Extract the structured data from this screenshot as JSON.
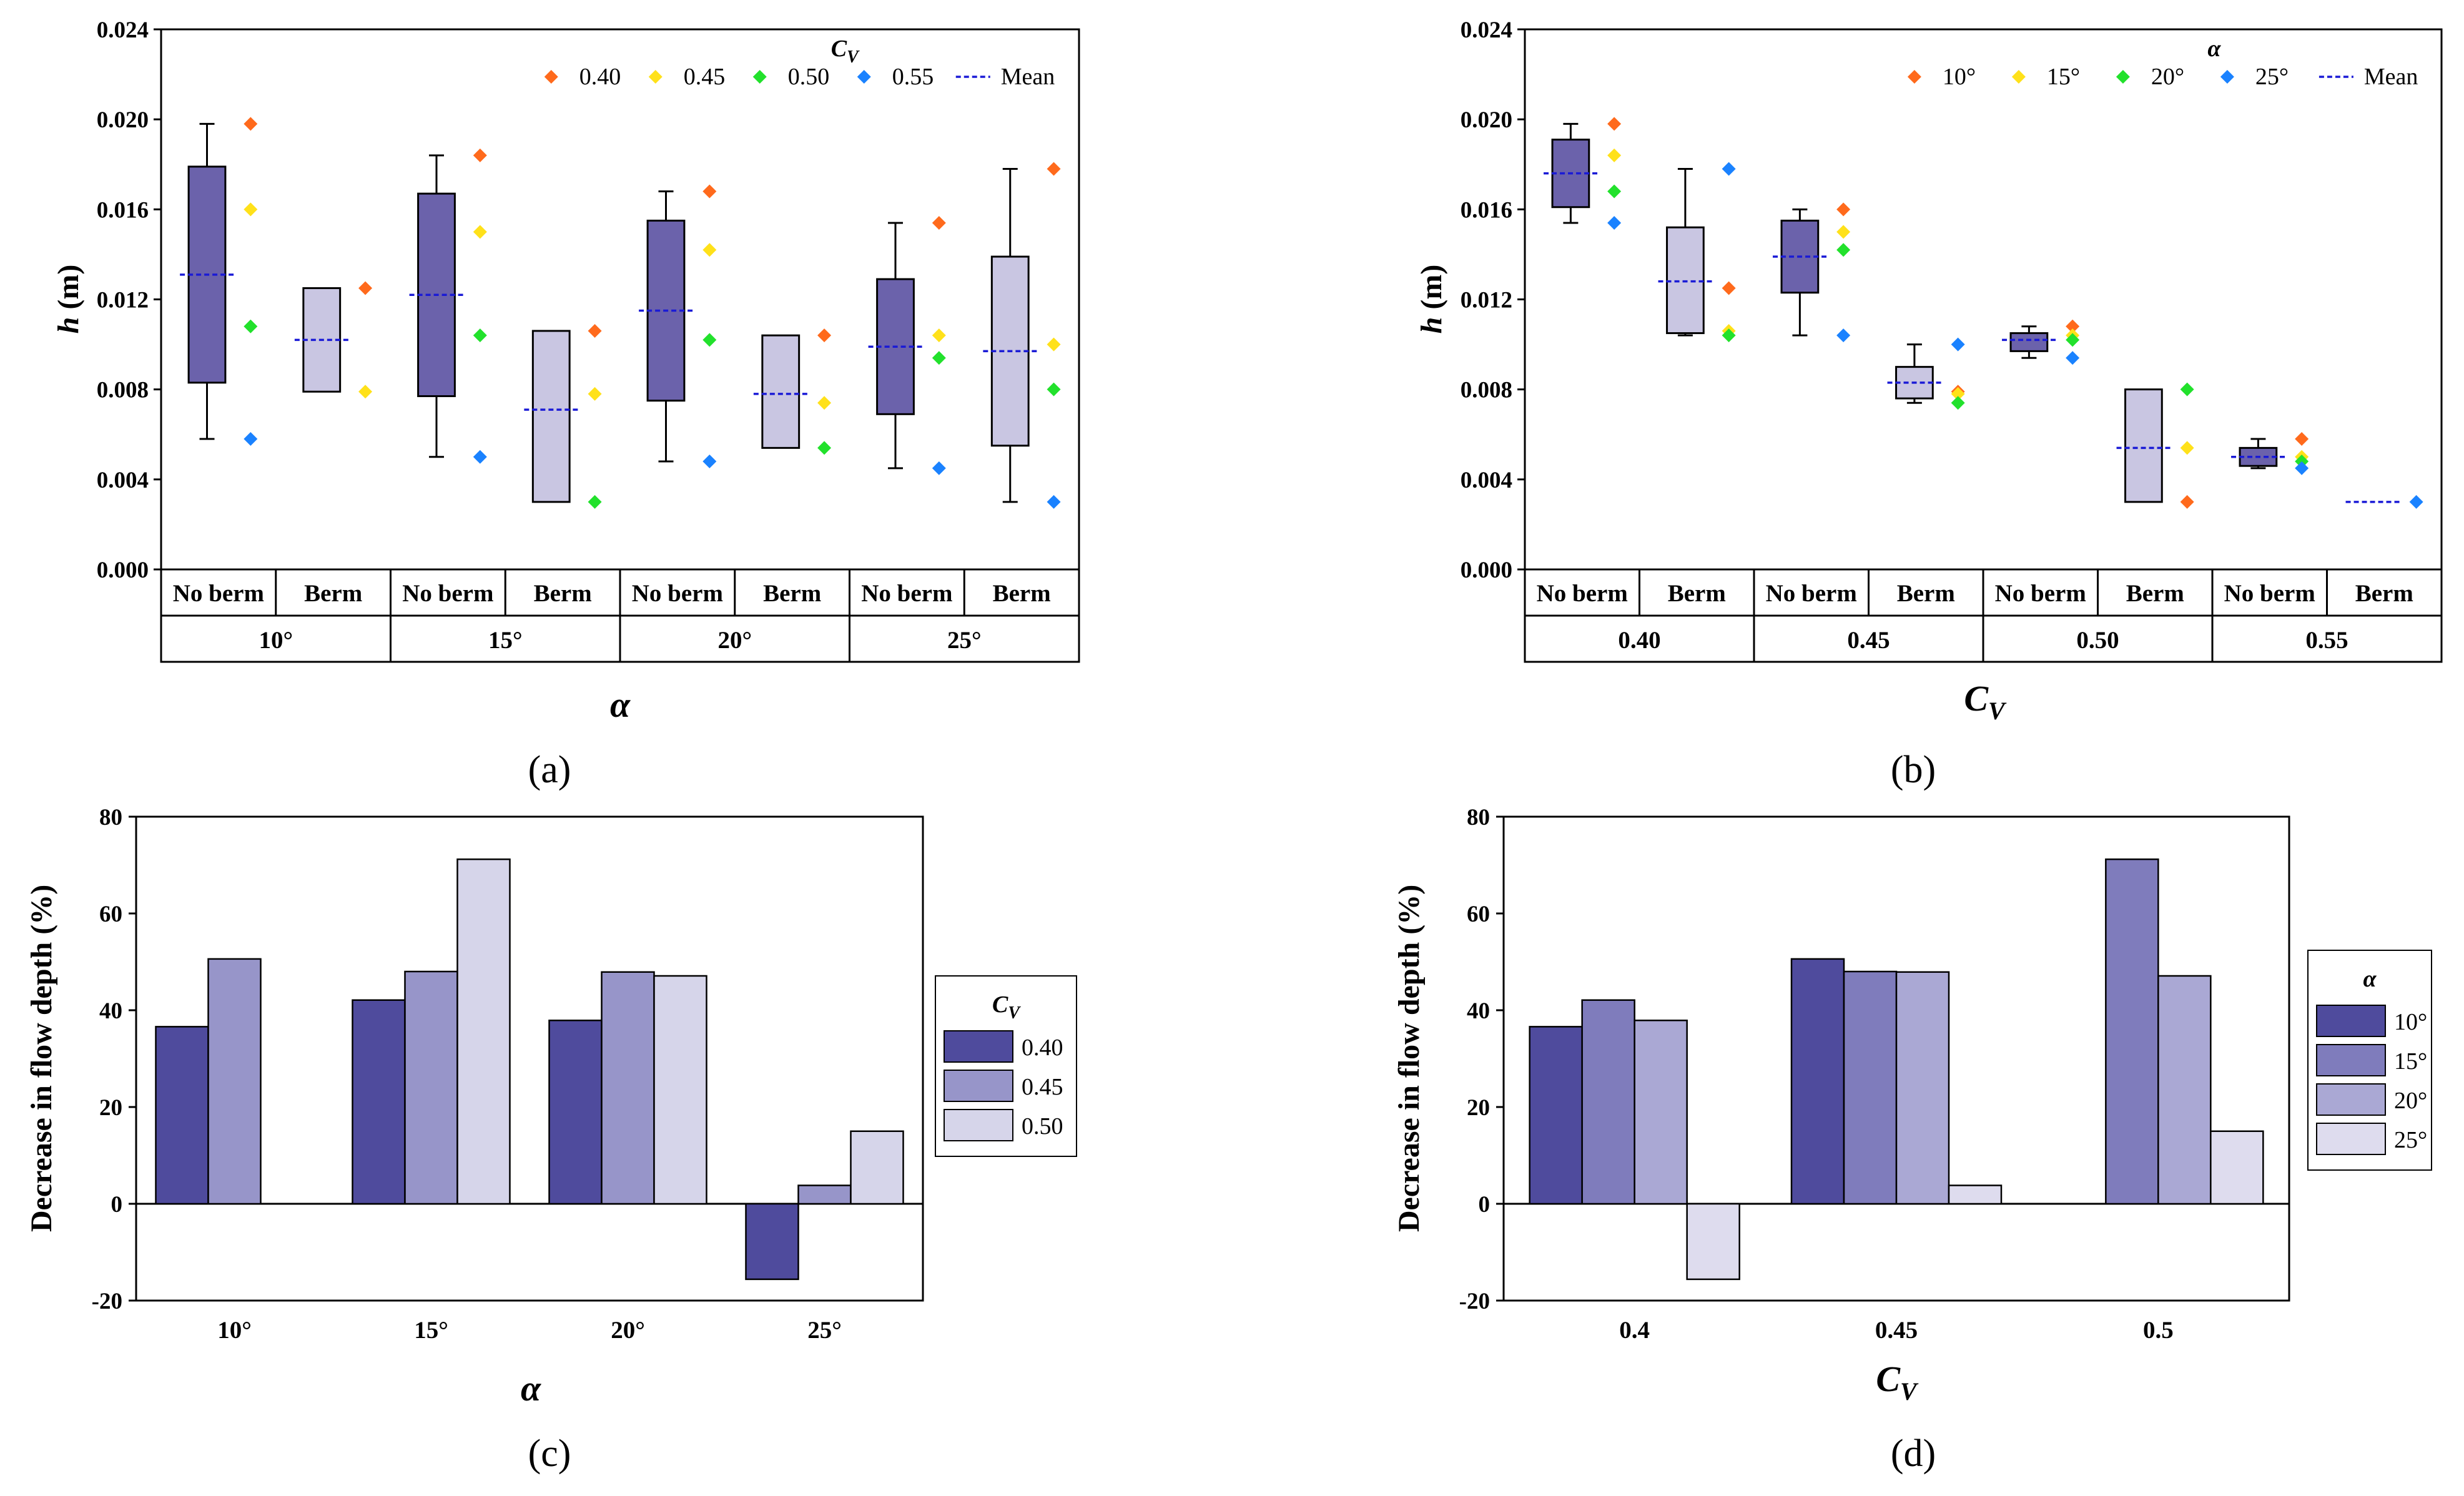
{
  "colors": {
    "box_nb": "#6b62ab",
    "box_b": "#c9c6e2",
    "mean": "#1a1ad6",
    "s040": "#ff6a1c",
    "s045": "#ffe11a",
    "s050": "#22e12c",
    "s055": "#1a82ff",
    "bar_c": [
      "#4f4b9d",
      "#9795c9",
      "#d6d5ea"
    ],
    "bar_d": [
      "#4f4b9d",
      "#7f7cbc",
      "#aaa8d4",
      "#dedcee"
    ]
  },
  "chart_data": [
    {
      "id": "a",
      "type": "box",
      "caption": "(a)",
      "ylabel": "h (m)",
      "ylabel_var": "h",
      "ylabel_unit": " (m)",
      "xlabel": "α",
      "ylim": [
        0,
        0.024
      ],
      "yticks": [
        "0.000",
        "0.004",
        "0.008",
        "0.012",
        "0.016",
        "0.020",
        "0.024"
      ],
      "subcategories": [
        "No berm",
        "Berm"
      ],
      "groups": [
        "10°",
        "15°",
        "20°",
        "25°"
      ],
      "legend_title": "C_V",
      "legend_title_main": "C",
      "legend_title_sub": "V",
      "legend": [
        "0.40",
        "0.45",
        "0.50",
        "0.55",
        "Mean"
      ],
      "boxes": [
        {
          "q1": 0.0083,
          "q3": 0.0179,
          "min": 0.0058,
          "max": 0.0198,
          "mean": 0.0131,
          "points": [
            0.0198,
            0.016,
            0.0108,
            0.0058
          ]
        },
        {
          "q1": 0.0079,
          "q3": 0.0125,
          "mean": 0.0102,
          "points": [
            0.0125,
            0.0079
          ]
        },
        {
          "q1": 0.0077,
          "q3": 0.0167,
          "min": 0.005,
          "max": 0.0184,
          "mean": 0.0122,
          "points": [
            0.0184,
            0.015,
            0.0104,
            0.005
          ]
        },
        {
          "q1": 0.003,
          "q3": 0.0106,
          "mean": 0.0071,
          "points": [
            0.0106,
            0.0078,
            0.003
          ]
        },
        {
          "q1": 0.0075,
          "q3": 0.0155,
          "min": 0.0048,
          "max": 0.0168,
          "mean": 0.0115,
          "points": [
            0.0168,
            0.0142,
            0.0102,
            0.0048
          ]
        },
        {
          "q1": 0.0054,
          "q3": 0.0104,
          "mean": 0.0078,
          "points": [
            0.0104,
            0.0074,
            0.0054
          ]
        },
        {
          "q1": 0.0069,
          "q3": 0.0129,
          "min": 0.0045,
          "max": 0.0154,
          "mean": 0.0099,
          "points": [
            0.0154,
            0.0104,
            0.0094,
            0.0045
          ]
        },
        {
          "q1": 0.0055,
          "q3": 0.0139,
          "min": 0.003,
          "max": 0.0178,
          "mean": 0.0097,
          "points": [
            0.0178,
            0.01,
            0.008,
            0.003
          ]
        }
      ]
    },
    {
      "id": "b",
      "type": "box",
      "caption": "(b)",
      "ylabel": "h (m)",
      "ylabel_var": "h",
      "ylabel_unit": " (m)",
      "xlabel": "C_V",
      "xlabel_main": "C",
      "xlabel_sub": "V",
      "ylim": [
        0,
        0.024
      ],
      "yticks": [
        "0.000",
        "0.004",
        "0.008",
        "0.012",
        "0.016",
        "0.020",
        "0.024"
      ],
      "subcategories": [
        "No berm",
        "Berm"
      ],
      "groups": [
        "0.40",
        "0.45",
        "0.50",
        "0.55"
      ],
      "legend_title": "α",
      "legend": [
        "10°",
        "15°",
        "20°",
        "25°",
        "Mean"
      ],
      "boxes": [
        {
          "q1": 0.0161,
          "q3": 0.0191,
          "min": 0.0154,
          "max": 0.0198,
          "mean": 0.0176,
          "points": [
            0.0198,
            0.0184,
            0.0168,
            0.0154
          ]
        },
        {
          "q1": 0.0105,
          "q3": 0.0152,
          "min": 0.0104,
          "max": 0.0178,
          "mean": 0.0128,
          "points": [
            0.0125,
            0.0106,
            0.0104,
            0.0178
          ]
        },
        {
          "q1": 0.0123,
          "q3": 0.0155,
          "min": 0.0104,
          "max": 0.016,
          "mean": 0.0139,
          "points": [
            0.016,
            0.015,
            0.0142,
            0.0104
          ]
        },
        {
          "q1": 0.0076,
          "q3": 0.009,
          "min": 0.0074,
          "max": 0.01,
          "mean": 0.0083,
          "points": [
            0.0079,
            0.0078,
            0.0074,
            0.01
          ]
        },
        {
          "q1": 0.0097,
          "q3": 0.0105,
          "min": 0.0094,
          "max": 0.0108,
          "mean": 0.0102,
          "points": [
            0.0108,
            0.0104,
            0.0102,
            0.0094
          ]
        },
        {
          "q1": 0.003,
          "q3": 0.008,
          "mean": 0.0054,
          "points": [
            0.003,
            0.0054,
            0.008
          ]
        },
        {
          "q1": 0.0046,
          "q3": 0.0054,
          "min": 0.0045,
          "max": 0.0058,
          "mean": 0.005,
          "points": [
            0.0058,
            0.005,
            0.0048,
            0.0045
          ]
        },
        {
          "q1": 0.003,
          "q3": 0.003,
          "mean": 0.003,
          "points": [
            null,
            null,
            null,
            0.003
          ]
        }
      ]
    },
    {
      "id": "c",
      "type": "bar",
      "caption": "(c)",
      "ylabel": "Decrease in flow depth (%)",
      "xlabel": "α",
      "ylim": [
        -20,
        80
      ],
      "yticks": [
        "-20",
        "0",
        "20",
        "40",
        "60",
        "80"
      ],
      "categories": [
        "10°",
        "15°",
        "20°",
        "25°"
      ],
      "legend_title": "C_V",
      "legend_title_main": "C",
      "legend_title_sub": "V",
      "series": [
        {
          "name": "0.40",
          "values": [
            36.6,
            42.1,
            37.9,
            -15.6
          ]
        },
        {
          "name": "0.45",
          "values": [
            50.6,
            48.0,
            47.9,
            3.8
          ]
        },
        {
          "name": "0.50",
          "values": [
            null,
            71.2,
            47.1,
            15.0
          ]
        }
      ]
    },
    {
      "id": "d",
      "type": "bar",
      "caption": "(d)",
      "ylabel": "Decrease in flow depth (%)",
      "xlabel": "C_V",
      "xlabel_main": "C",
      "xlabel_sub": "V",
      "ylim": [
        -20,
        80
      ],
      "yticks": [
        "-20",
        "0",
        "20",
        "40",
        "60",
        "80"
      ],
      "categories": [
        "0.4",
        "0.45",
        "0.5"
      ],
      "legend_title": "α",
      "series": [
        {
          "name": "10°",
          "values": [
            36.6,
            50.6,
            null
          ]
        },
        {
          "name": "15°",
          "values": [
            42.1,
            48.0,
            71.2
          ]
        },
        {
          "name": "20°",
          "values": [
            37.9,
            47.9,
            47.1
          ]
        },
        {
          "name": "25°",
          "values": [
            -15.6,
            3.8,
            15.0
          ]
        }
      ]
    }
  ]
}
